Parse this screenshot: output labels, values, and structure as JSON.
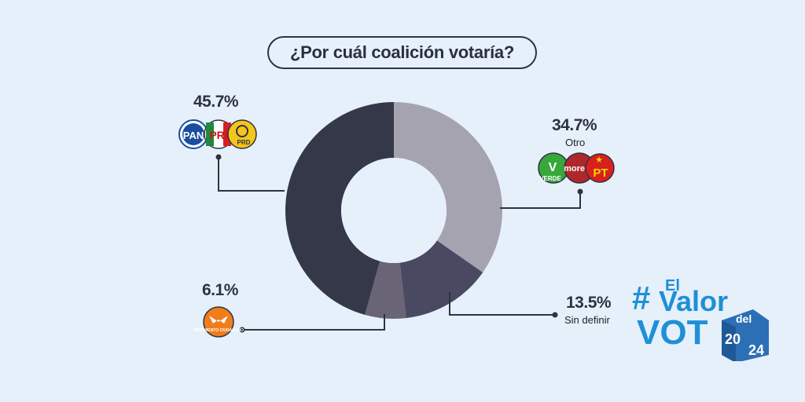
{
  "title": "¿Por cuál coalición votaría?",
  "chart_data": {
    "type": "pie",
    "donut": true,
    "categories": [
      "Otro",
      "Sin definir",
      "",
      ""
    ],
    "values": [
      34.7,
      13.5,
      6.1,
      45.7
    ],
    "value_labels": [
      "34.7%",
      "13.5%",
      "6.1%",
      "45.7%"
    ],
    "colors": [
      "#a6a3b0",
      "#494a61",
      "#6a6576",
      "#343849"
    ]
  },
  "party_logos": {
    "coalition_left": [
      "PAN",
      "PRI",
      "PRD"
    ],
    "coalition_right": [
      "VERDE",
      "morena",
      "PT"
    ],
    "mc": "MOVIMIENTO CIUDADANO"
  },
  "brand": {
    "hash": "#",
    "el": "El",
    "valor": "Valor",
    "del": "del",
    "voto": "VOT",
    "year_top": "20",
    "year_bottom": "24",
    "color": "#1f8fd6"
  }
}
